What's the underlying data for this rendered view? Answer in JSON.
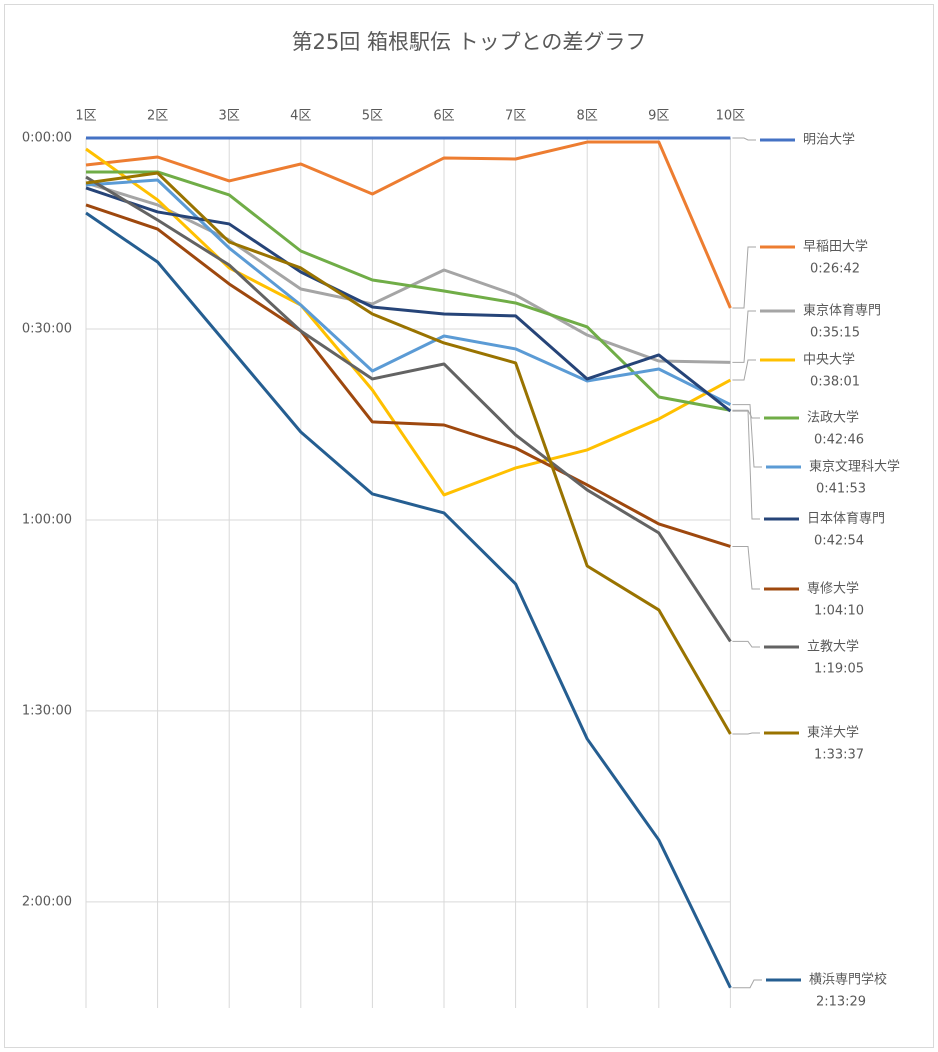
{
  "chart_data": {
    "type": "line",
    "title": "第25回 箱根駅伝 トップとの差グラフ",
    "categories": [
      "1区",
      "2区",
      "3区",
      "4区",
      "5区",
      "6区",
      "7区",
      "8区",
      "9区",
      "10区"
    ],
    "ylim": [
      0,
      8200
    ],
    "y_reversed": true,
    "grid": true,
    "yticks": [
      {
        "value": 0,
        "label": "0:00:00"
      },
      {
        "value": 1800,
        "label": "0:30:00"
      },
      {
        "value": 3600,
        "label": "1:00:00"
      },
      {
        "value": 5400,
        "label": "1:30:00"
      },
      {
        "value": 7200,
        "label": "2:00:00"
      }
    ],
    "series": [
      {
        "name": "明治大学",
        "color": "#4472c4",
        "values": [
          0,
          0,
          0,
          0,
          0,
          0,
          0,
          0,
          0,
          0
        ]
      },
      {
        "name": "早稲田大学",
        "color": "#ed7d31",
        "values": [
          254,
          179,
          405,
          245,
          528,
          188,
          198,
          38,
          38,
          1602
        ],
        "value_labels": [
          null,
          null,
          null,
          null,
          null,
          null,
          null,
          null,
          null,
          "0:26:42"
        ]
      },
      {
        "name": "東京体育専門",
        "color": "#a5a5a5",
        "values": [
          424,
          631,
          961,
          1423,
          1564,
          1244,
          1480,
          1857,
          2102,
          2115
        ],
        "value_labels": [
          null,
          null,
          null,
          null,
          null,
          null,
          null,
          null,
          null,
          "0:35:15"
        ]
      },
      {
        "name": "中央大学",
        "color": "#ffc000",
        "values": [
          104,
          584,
          1225,
          1574,
          2375,
          3364,
          3110,
          2940,
          2648,
          2281
        ],
        "value_labels": [
          null,
          null,
          null,
          null,
          null,
          null,
          null,
          null,
          null,
          "0:38:01"
        ]
      },
      {
        "name": "法政大学",
        "color": "#70ad47",
        "values": [
          320,
          320,
          537,
          1065,
          1338,
          1442,
          1555,
          1781,
          2441,
          2566
        ],
        "value_labels": [
          null,
          null,
          null,
          null,
          null,
          null,
          null,
          null,
          null,
          "0:42:46"
        ]
      },
      {
        "name": "東京文理科大学",
        "color": "#5b9bd5",
        "values": [
          443,
          396,
          1037,
          1574,
          2196,
          1866,
          1988,
          2290,
          2177,
          2513
        ],
        "value_labels": [
          null,
          null,
          null,
          null,
          null,
          null,
          null,
          null,
          null,
          "0:41:53"
        ]
      },
      {
        "name": "日本体育専門",
        "color": "#264478",
        "values": [
          471,
          697,
          810,
          1263,
          1593,
          1659,
          1677,
          2271,
          2045,
          2574
        ],
        "value_labels": [
          null,
          null,
          null,
          null,
          null,
          null,
          null,
          null,
          null,
          "0:42:54"
        ]
      },
      {
        "name": "専修大学",
        "color": "#9e480e",
        "values": [
          631,
          858,
          1376,
          1819,
          2676,
          2705,
          2922,
          3270,
          3638,
          3850
        ],
        "value_labels": [
          null,
          null,
          null,
          null,
          null,
          null,
          null,
          null,
          null,
          "1:04:10"
        ]
      },
      {
        "name": "立教大学",
        "color": "#636363",
        "values": [
          368,
          773,
          1197,
          1819,
          2271,
          2130,
          2799,
          3317,
          3722,
          4745
        ],
        "value_labels": [
          null,
          null,
          null,
          null,
          null,
          null,
          null,
          null,
          null,
          "1:19:05"
        ]
      },
      {
        "name": "東洋大学",
        "color": "#997300",
        "values": [
          424,
          330,
          980,
          1225,
          1659,
          1932,
          2120,
          4034,
          4448,
          5617
        ],
        "value_labels": [
          null,
          null,
          null,
          null,
          null,
          null,
          null,
          null,
          null,
          "1:33:37"
        ]
      },
      {
        "name": "横浜専門学校",
        "color": "#255e91",
        "values": [
          707,
          1169,
          1970,
          2771,
          3355,
          3534,
          4203,
          5664,
          6616,
          8009
        ],
        "value_labels": [
          null,
          null,
          null,
          null,
          null,
          null,
          null,
          null,
          null,
          "2:13:29"
        ]
      }
    ]
  }
}
